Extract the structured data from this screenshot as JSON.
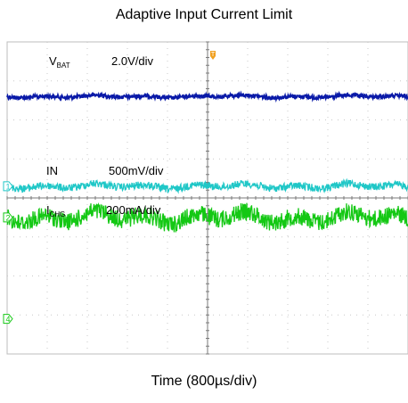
{
  "chart_data": {
    "type": "line",
    "title": "Adaptive Input Current Limit",
    "xlabel": "Time (800µs/div)",
    "ylabel": "",
    "grid": true,
    "divisions": {
      "x": 10,
      "y": 8
    },
    "trigger_marker": "T",
    "series": [
      {
        "name_main": "V",
        "name_sub": "BAT",
        "scale": "2.0V/div",
        "color": "#0a1aa8",
        "channel_marker": "",
        "ref_div": 6.6,
        "noise_div": 0.06
      },
      {
        "name_main": "IN",
        "name_sub": "",
        "scale": "500mV/div",
        "color": "#1fc7c7",
        "channel_marker": "1",
        "ref_div": 4.3,
        "noise_div": 0.12
      },
      {
        "name_main": "I",
        "name_sub": "CHG",
        "scale": "200mA/div",
        "color": "#14c814",
        "channel_marker": "2",
        "ref_div": 3.5,
        "noise_div": 0.28
      },
      {
        "name_main": "",
        "name_sub": "",
        "scale": "",
        "color": "#14c814",
        "channel_marker": "4",
        "ref_div": 0.9,
        "noise_div": 0
      }
    ]
  }
}
